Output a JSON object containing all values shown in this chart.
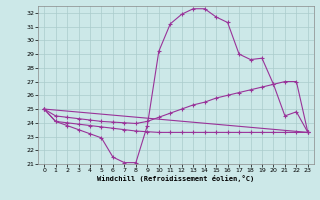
{
  "xlabel": "Windchill (Refroidissement éolien,°C)",
  "background_color": "#cce8e8",
  "grid_color": "#aacccc",
  "line_color": "#993399",
  "xlim": [
    -0.5,
    23.5
  ],
  "ylim": [
    21,
    32.5
  ],
  "xticks": [
    0,
    1,
    2,
    3,
    4,
    5,
    6,
    7,
    8,
    9,
    10,
    11,
    12,
    13,
    14,
    15,
    16,
    17,
    18,
    19,
    20,
    21,
    22,
    23
  ],
  "yticks": [
    21,
    22,
    23,
    24,
    25,
    26,
    27,
    28,
    29,
    30,
    31,
    32
  ],
  "series1_x": [
    0,
    1,
    2,
    3,
    4,
    5,
    6,
    7,
    8,
    9,
    10,
    11,
    12,
    13,
    14,
    15,
    16,
    17,
    18,
    19,
    20,
    21,
    22,
    23
  ],
  "series1_y": [
    25.0,
    24.1,
    23.8,
    23.5,
    23.2,
    22.9,
    21.5,
    21.1,
    21.1,
    23.8,
    29.2,
    31.2,
    31.9,
    32.3,
    32.3,
    31.7,
    31.3,
    29.0,
    28.6,
    28.7,
    26.8,
    24.5,
    24.8,
    23.3
  ],
  "series2_x": [
    0,
    1,
    2,
    3,
    4,
    5,
    6,
    7,
    8,
    9,
    10,
    11,
    12,
    13,
    14,
    15,
    16,
    17,
    18,
    19,
    20,
    21,
    22,
    23
  ],
  "series2_y": [
    25.0,
    24.5,
    24.4,
    24.3,
    24.2,
    24.1,
    24.05,
    24.0,
    23.95,
    24.1,
    24.4,
    24.7,
    25.0,
    25.3,
    25.5,
    25.8,
    26.0,
    26.2,
    26.4,
    26.6,
    26.8,
    27.0,
    27.0,
    23.3
  ],
  "series3_x": [
    0,
    23
  ],
  "series3_y": [
    25.0,
    23.3
  ],
  "series4_x": [
    0,
    1,
    2,
    3,
    4,
    5,
    6,
    7,
    8,
    9,
    10,
    11,
    12,
    13,
    14,
    15,
    16,
    17,
    18,
    19,
    20,
    21,
    22,
    23
  ],
  "series4_y": [
    25.0,
    24.1,
    24.0,
    23.9,
    23.8,
    23.7,
    23.6,
    23.5,
    23.4,
    23.35,
    23.3,
    23.3,
    23.3,
    23.3,
    23.3,
    23.3,
    23.3,
    23.3,
    23.3,
    23.3,
    23.3,
    23.3,
    23.3,
    23.3
  ]
}
